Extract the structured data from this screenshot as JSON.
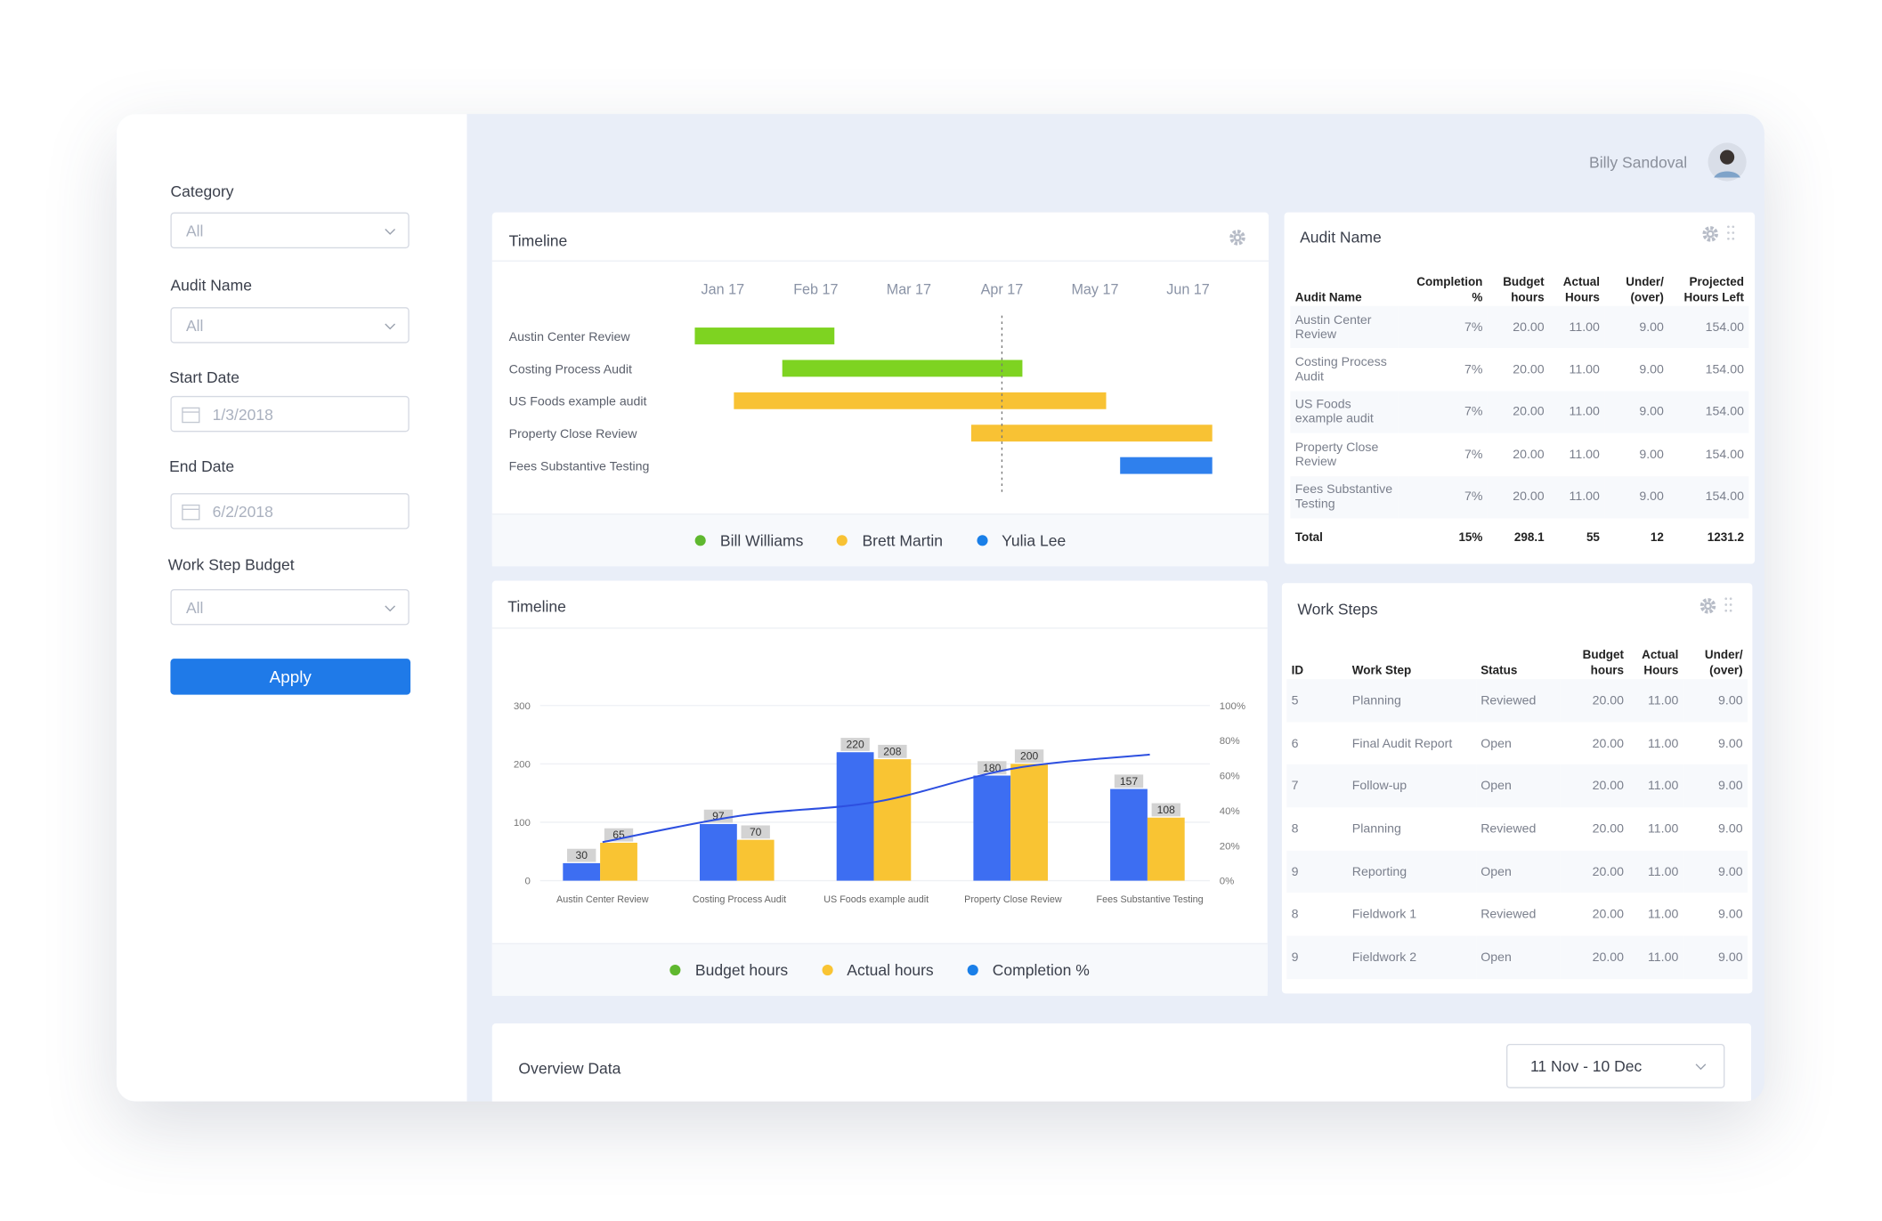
{
  "sidebar": {
    "filters": [
      {
        "label": "Category",
        "value": "All"
      },
      {
        "label": "Audit Name",
        "value": "All"
      },
      {
        "label": "Start Date",
        "value": "1/3/2018"
      },
      {
        "label": "End Date",
        "value": "6/2/2018"
      },
      {
        "label": "Work Step Budget",
        "value": "All"
      }
    ],
    "button": "Apply"
  },
  "header": {
    "user": "Billy Sandoval"
  },
  "chart_data": [
    {
      "type": "gantt",
      "title": "Timeline",
      "tasks": [
        {
          "label": "Austin Center Review",
          "start": -0.3,
          "end": 1.2,
          "color": "#7ed321"
        },
        {
          "label": "Costing Process Audit",
          "start": 0.64,
          "end": 3.22,
          "color": "#7ed321"
        },
        {
          "label": "US Foods example audit",
          "start": 0.12,
          "end": 4.12,
          "color": "#f8c234"
        },
        {
          "label": "Property Close Review",
          "start": 2.67,
          "end": 5.26,
          "color": "#f8c234"
        },
        {
          "label": "Fees Substantive Testing",
          "start": 4.27,
          "end": 5.26,
          "color": "#2f80ed"
        }
      ],
      "xlim": [
        -0.35,
        5.26
      ],
      "xticks": [
        {
          "value": 0,
          "label": "Jan 17"
        },
        {
          "value": 1,
          "label": "Feb 17"
        },
        {
          "value": 2,
          "label": "Mar 17"
        },
        {
          "value": 3,
          "label": "Apr 17"
        },
        {
          "value": 4,
          "label": "May 17"
        },
        {
          "value": 5,
          "label": "Jun 17"
        }
      ],
      "marker": 3,
      "legend": [
        {
          "name": "Bill Williams",
          "color": "#5fb82f"
        },
        {
          "name": "Brett Martin",
          "color": "#f8c234"
        },
        {
          "name": "Yulia Lee",
          "color": "#1a7fe8"
        }
      ]
    },
    {
      "type": "bar_line",
      "title": "Timeline",
      "categories": [
        "Austin Center Review",
        "Costing Process Audit",
        "US Foods example audit",
        "Property Close Review",
        "Fees Substantive Testing"
      ],
      "series": [
        {
          "name": "Budget hours",
          "color": "#3d6ef2",
          "legend_color": "#5fb82f",
          "values": [
            30,
            97,
            220,
            180,
            157
          ]
        },
        {
          "name": "Actual hours",
          "color": "#f9c433",
          "legend_color": "#f9c433",
          "values": [
            65,
            70,
            208,
            200,
            108
          ]
        },
        {
          "name": "Completion %",
          "color": "#2d4fe0",
          "legend_color": "#1a7fe8",
          "axis": "y2",
          "values": [
            22,
            37,
            45,
            64,
            72
          ]
        }
      ],
      "ylim": [
        0,
        300
      ],
      "yticks": [
        0,
        100,
        200,
        300
      ],
      "y2lim": [
        0,
        100
      ],
      "y2ticks": [
        {
          "value": 0,
          "label": "0%"
        },
        {
          "value": 20,
          "label": "20%"
        },
        {
          "value": 40,
          "label": "40%"
        },
        {
          "value": 60,
          "label": "60%"
        },
        {
          "value": 80,
          "label": "80%"
        },
        {
          "value": 100,
          "label": "100%"
        }
      ],
      "grid": true
    }
  ],
  "audit_table": {
    "title": "Audit Name",
    "columns": [
      "Audit Name",
      "Completion %",
      "Budget hours",
      "Actual Hours",
      "Under/ (over)",
      "Projected Hours Left"
    ],
    "rows": [
      [
        "Austin Center Review",
        "7%",
        "20.00",
        "11.00",
        "9.00",
        "154.00"
      ],
      [
        "Costing Process Audit",
        "7%",
        "20.00",
        "11.00",
        "9.00",
        "154.00"
      ],
      [
        "US Foods example audit",
        "7%",
        "20.00",
        "11.00",
        "9.00",
        "154.00"
      ],
      [
        "Property Close Review",
        "7%",
        "20.00",
        "11.00",
        "9.00",
        "154.00"
      ],
      [
        "Fees Substantive Testing",
        "7%",
        "20.00",
        "11.00",
        "9.00",
        "154.00"
      ]
    ],
    "total": [
      "Total",
      "15%",
      "298.1",
      "55",
      "12",
      "1231.2"
    ]
  },
  "work_steps": {
    "title": "Work Steps",
    "columns": [
      "ID",
      "Work Step",
      "Status",
      "Budget hours",
      "Actual Hours",
      "Under/ (over)"
    ],
    "rows": [
      [
        "5",
        "Planning",
        "Reviewed",
        "20.00",
        "11.00",
        "9.00"
      ],
      [
        "6",
        "Final Audit Report",
        "Open",
        "20.00",
        "11.00",
        "9.00"
      ],
      [
        "7",
        "Follow-up",
        "Open",
        "20.00",
        "11.00",
        "9.00"
      ],
      [
        "8",
        "Planning",
        "Reviewed",
        "20.00",
        "11.00",
        "9.00"
      ],
      [
        "9",
        "Reporting",
        "Open",
        "20.00",
        "11.00",
        "9.00"
      ],
      [
        "8",
        "Fieldwork 1",
        "Reviewed",
        "20.00",
        "11.00",
        "9.00"
      ],
      [
        "9",
        "Fieldwork 2",
        "Open",
        "20.00",
        "11.00",
        "9.00"
      ]
    ]
  },
  "overview": {
    "title": "Overview Data",
    "range": "11 Nov - 10 Dec"
  }
}
